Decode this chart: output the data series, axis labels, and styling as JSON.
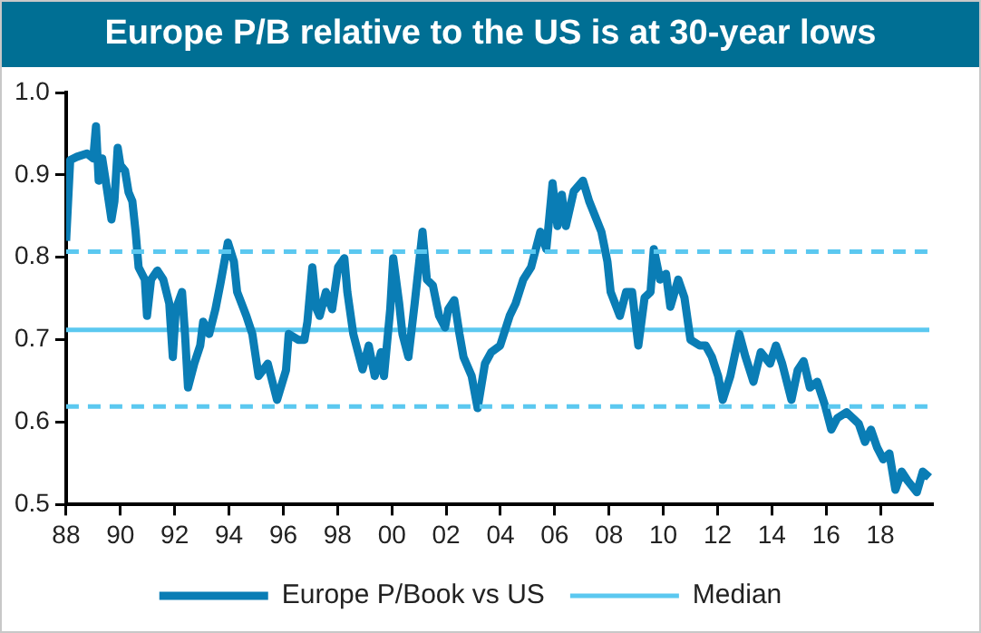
{
  "chart_data": {
    "type": "line",
    "title": "Europe P/B relative to the US is at 30-year lows",
    "xlim": [
      1988,
      2019.9
    ],
    "xticks": [
      {
        "value": 1988,
        "label": "88"
      },
      {
        "value": 1990,
        "label": "90"
      },
      {
        "value": 1992,
        "label": "92"
      },
      {
        "value": 1994,
        "label": "94"
      },
      {
        "value": 1996,
        "label": "96"
      },
      {
        "value": 1998,
        "label": "98"
      },
      {
        "value": 2000,
        "label": "00"
      },
      {
        "value": 2002,
        "label": "02"
      },
      {
        "value": 2004,
        "label": "04"
      },
      {
        "value": 2006,
        "label": "06"
      },
      {
        "value": 2008,
        "label": "08"
      },
      {
        "value": 2010,
        "label": "10"
      },
      {
        "value": 2012,
        "label": "12"
      },
      {
        "value": 2014,
        "label": "14"
      },
      {
        "value": 2016,
        "label": "16"
      },
      {
        "value": 2018,
        "label": "18"
      }
    ],
    "ylim": [
      0.5,
      1
    ],
    "yticks": [
      0.5,
      0.6,
      0.7,
      0.8,
      0.9,
      {
        "value": 1,
        "label": "1.0"
      }
    ],
    "grid": false,
    "legend": "bottom",
    "marker": "none",
    "series": [
      {
        "name": "Europe P/Book vs US",
        "color": "#0a7db5",
        "x": [
          1988.0,
          1988.15,
          1988.4,
          1988.77,
          1989.0,
          1989.1,
          1989.2,
          1989.33,
          1989.44,
          1989.67,
          1989.78,
          1989.9,
          1990.0,
          1990.17,
          1990.3,
          1990.44,
          1990.56,
          1990.67,
          1990.9,
          1990.98,
          1991.13,
          1991.36,
          1991.58,
          1991.8,
          1991.93,
          1992.04,
          1992.27,
          1992.38,
          1992.49,
          1992.72,
          1992.94,
          1993.05,
          1993.27,
          1993.5,
          1993.69,
          1993.96,
          1994.18,
          1994.3,
          1994.64,
          1994.86,
          1995.09,
          1995.43,
          1995.77,
          1996.1,
          1996.2,
          1996.55,
          1996.78,
          1996.89,
          1997.07,
          1997.23,
          1997.34,
          1997.57,
          1997.8,
          1998.02,
          1998.25,
          1998.36,
          1998.58,
          1998.92,
          1999.15,
          1999.37,
          1999.6,
          1999.71,
          1999.94,
          2000.05,
          2000.27,
          2000.39,
          2000.61,
          2000.84,
          2001.13,
          2001.29,
          2001.51,
          2001.74,
          2001.96,
          2002.08,
          2002.3,
          2002.49,
          2002.64,
          2002.94,
          2003.16,
          2003.43,
          2003.66,
          2003.99,
          2004.34,
          2004.56,
          2004.84,
          2005.13,
          2005.47,
          2005.69,
          2005.92,
          2006.1,
          2006.26,
          2006.41,
          2006.7,
          2007.04,
          2007.27,
          2007.72,
          2007.94,
          2008.06,
          2008.4,
          2008.63,
          2008.85,
          2009.08,
          2009.31,
          2009.53,
          2009.65,
          2009.88,
          2010.1,
          2010.26,
          2010.55,
          2010.78,
          2011.0,
          2011.34,
          2011.56,
          2011.79,
          2012.02,
          2012.19,
          2012.47,
          2012.8,
          2013.03,
          2013.32,
          2013.59,
          2013.93,
          2014.15,
          2014.38,
          2014.72,
          2014.95,
          2015.17,
          2015.4,
          2015.67,
          2015.96,
          2016.19,
          2016.41,
          2016.75,
          2016.98,
          2017.2,
          2017.43,
          2017.65,
          2017.88,
          2018.1,
          2018.33,
          2018.55,
          2018.78,
          2019.0,
          2019.34,
          2019.56,
          2019.8
        ],
        "values": [
          0.82,
          0.918,
          0.922,
          0.926,
          0.92,
          0.959,
          0.893,
          0.92,
          0.897,
          0.846,
          0.868,
          0.933,
          0.912,
          0.905,
          0.879,
          0.868,
          0.831,
          0.788,
          0.773,
          0.729,
          0.773,
          0.784,
          0.773,
          0.744,
          0.679,
          0.737,
          0.758,
          0.707,
          0.642,
          0.671,
          0.693,
          0.722,
          0.707,
          0.737,
          0.769,
          0.818,
          0.795,
          0.758,
          0.729,
          0.707,
          0.656,
          0.671,
          0.627,
          0.663,
          0.707,
          0.7,
          0.7,
          0.722,
          0.788,
          0.737,
          0.729,
          0.758,
          0.737,
          0.788,
          0.799,
          0.758,
          0.707,
          0.664,
          0.693,
          0.656,
          0.685,
          0.656,
          0.737,
          0.799,
          0.744,
          0.707,
          0.679,
          0.744,
          0.831,
          0.773,
          0.766,
          0.729,
          0.715,
          0.737,
          0.748,
          0.707,
          0.679,
          0.656,
          0.617,
          0.671,
          0.685,
          0.693,
          0.729,
          0.744,
          0.773,
          0.788,
          0.831,
          0.81,
          0.89,
          0.838,
          0.876,
          0.838,
          0.88,
          0.893,
          0.868,
          0.831,
          0.795,
          0.758,
          0.729,
          0.758,
          0.758,
          0.693,
          0.751,
          0.758,
          0.81,
          0.773,
          0.78,
          0.74,
          0.773,
          0.751,
          0.7,
          0.693,
          0.693,
          0.679,
          0.656,
          0.627,
          0.656,
          0.707,
          0.679,
          0.649,
          0.685,
          0.671,
          0.693,
          0.671,
          0.627,
          0.663,
          0.674,
          0.642,
          0.649,
          0.62,
          0.591,
          0.605,
          0.612,
          0.605,
          0.598,
          0.576,
          0.591,
          0.569,
          0.555,
          0.562,
          0.518,
          0.54,
          0.529,
          0.515,
          0.54,
          0.533
        ]
      },
      {
        "name": "Median",
        "color": "#5bc8f0",
        "x": [
          1988,
          2019.8
        ],
        "values": [
          0.712,
          0.712
        ]
      }
    ],
    "ref_lines": [
      {
        "axis": "y",
        "value": 0.807,
        "color": "#5bc8f0",
        "line_style": "dashed"
      },
      {
        "axis": "y",
        "value": 0.619,
        "color": "#5bc8f0",
        "line_style": "dashed"
      }
    ]
  }
}
